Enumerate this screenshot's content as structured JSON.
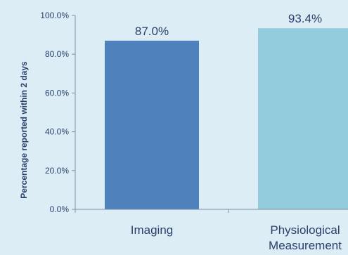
{
  "chart_data": {
    "type": "bar",
    "categories": [
      "Imaging",
      "Physiological Measurement"
    ],
    "category_lines": [
      [
        "Imaging"
      ],
      [
        "Physiological",
        "Measurement"
      ]
    ],
    "values": [
      87.0,
      93.4
    ],
    "data_labels": [
      "87.0%",
      "93.4%"
    ],
    "bar_colors": [
      "#4f81bd",
      "#93cddd"
    ],
    "title": "",
    "xlabel": "",
    "ylabel": "Percentage reported within 2 days",
    "ylim": [
      0,
      100
    ],
    "yticks": [
      0,
      20,
      40,
      60,
      80,
      100
    ],
    "ytick_labels": [
      "0.0%",
      "20.0%",
      "40.0%",
      "60.0%",
      "80.0%",
      "100.0%"
    ],
    "grid": false,
    "legend": "none"
  }
}
